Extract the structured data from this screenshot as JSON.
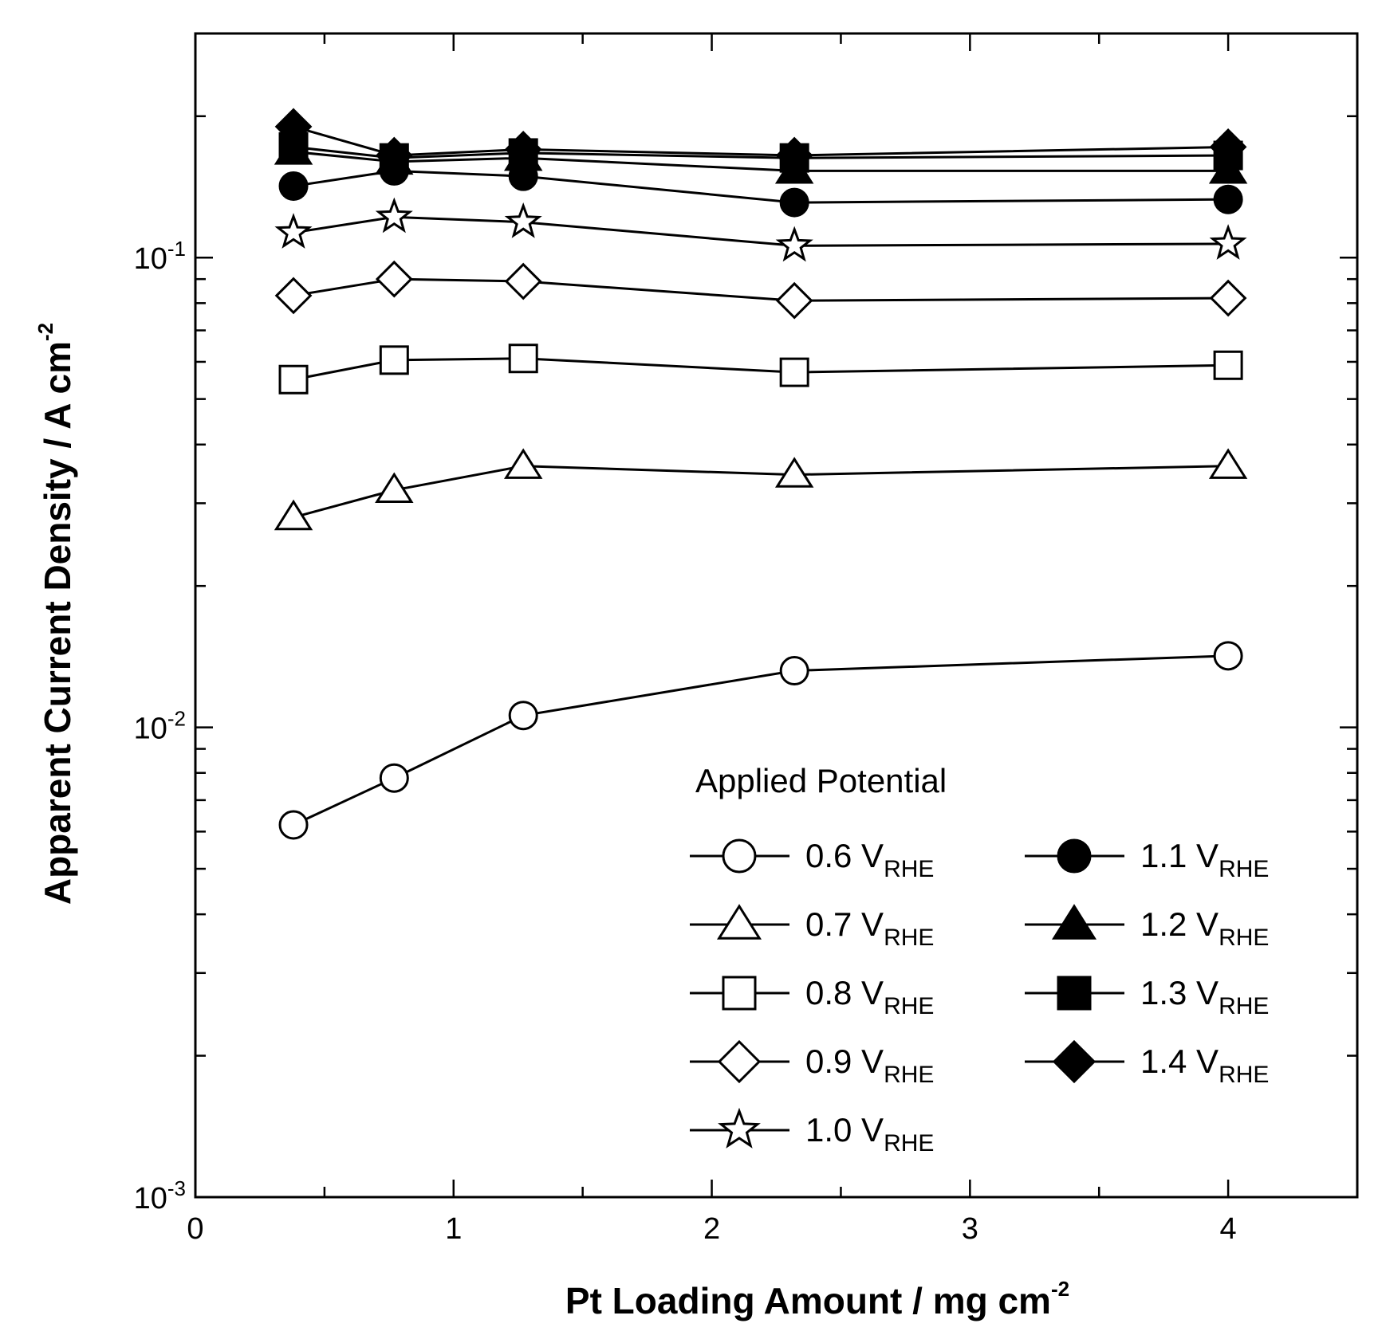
{
  "chart_data": {
    "type": "line",
    "title": "",
    "xlabel": "Pt Loading Amount / mg cm",
    "xlabel_sup": "-2",
    "ylabel": "Apparent Current Density / A  cm",
    "ylabel_sup": "-2",
    "xlim": [
      0,
      4.5
    ],
    "ylim": [
      0.001,
      0.3
    ],
    "yscale": "log",
    "x_ticks": [
      0,
      1,
      2,
      3,
      4
    ],
    "x_tick_labels": [
      "0",
      "1",
      "2",
      "3",
      "4"
    ],
    "y_tick_labels": [
      {
        "base": "10",
        "exp": "-3",
        "value": 0.001
      },
      {
        "base": "10",
        "exp": "-2",
        "value": 0.01
      },
      {
        "base": "10",
        "exp": "-1",
        "value": 0.1
      }
    ],
    "legend_title": "Applied Potential",
    "legend_position": "bottom-right",
    "x": [
      0.38,
      0.77,
      1.27,
      2.32,
      4.0
    ],
    "series": [
      {
        "name": "0.6",
        "unit": "V",
        "unit_sub": "RHE",
        "marker": "circle",
        "filled": false,
        "values": [
          0.0062,
          0.0078,
          0.0106,
          0.0132,
          0.0142
        ]
      },
      {
        "name": "0.7",
        "unit": "V",
        "unit_sub": "RHE",
        "marker": "triangle",
        "filled": false,
        "values": [
          0.028,
          0.032,
          0.036,
          0.0345,
          0.036
        ]
      },
      {
        "name": "0.8",
        "unit": "V",
        "unit_sub": "RHE",
        "marker": "square",
        "filled": false,
        "values": [
          0.055,
          0.0605,
          0.061,
          0.057,
          0.059
        ]
      },
      {
        "name": "0.9",
        "unit": "V",
        "unit_sub": "RHE",
        "marker": "diamond",
        "filled": false,
        "values": [
          0.083,
          0.09,
          0.089,
          0.081,
          0.082
        ]
      },
      {
        "name": "1.0",
        "unit": "V",
        "unit_sub": "RHE",
        "marker": "star",
        "filled": false,
        "values": [
          0.113,
          0.122,
          0.119,
          0.106,
          0.107
        ]
      },
      {
        "name": "1.1",
        "unit": "V",
        "unit_sub": "RHE",
        "marker": "circle",
        "filled": true,
        "values": [
          0.142,
          0.153,
          0.149,
          0.131,
          0.133
        ]
      },
      {
        "name": "1.2",
        "unit": "V",
        "unit_sub": "RHE",
        "marker": "triangle",
        "filled": true,
        "values": [
          0.168,
          0.16,
          0.163,
          0.153,
          0.153
        ]
      },
      {
        "name": "1.3",
        "unit": "V",
        "unit_sub": "RHE",
        "marker": "square",
        "filled": true,
        "values": [
          0.172,
          0.163,
          0.167,
          0.163,
          0.165
        ]
      },
      {
        "name": "1.4",
        "unit": "V",
        "unit_sub": "RHE",
        "marker": "diamond",
        "filled": true,
        "values": [
          0.19,
          0.165,
          0.17,
          0.165,
          0.172
        ]
      }
    ]
  }
}
